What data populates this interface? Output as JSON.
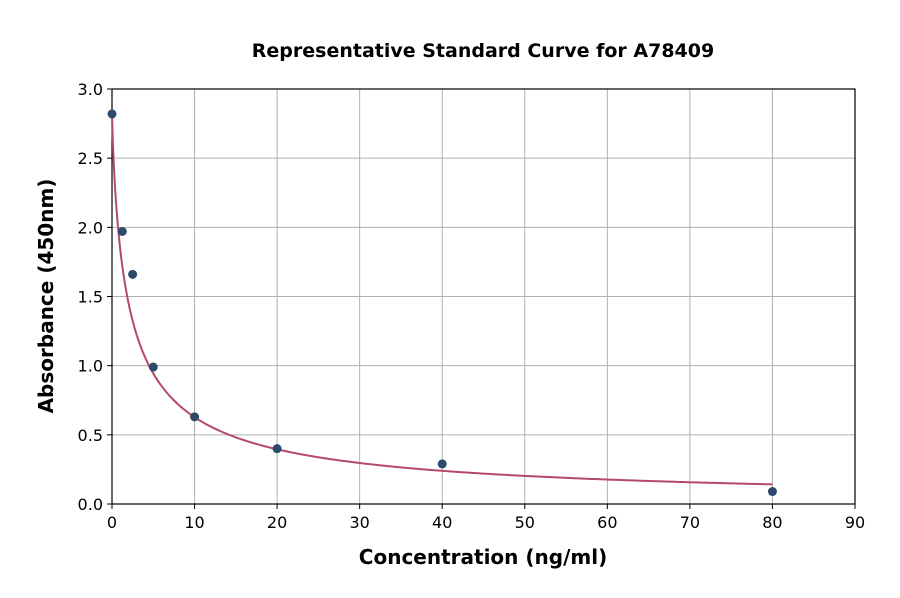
{
  "chart_data": {
    "type": "scatter",
    "title": "Representative Standard Curve for A78409",
    "xlabel": "Concentration (ng/ml)",
    "ylabel": "Absorbance (450nm)",
    "xlim": [
      0,
      90
    ],
    "ylim": [
      0,
      3.0
    ],
    "xticks": [
      "0",
      "10",
      "20",
      "30",
      "40",
      "50",
      "60",
      "70",
      "80",
      "90"
    ],
    "yticks": [
      "0.0",
      "0.5",
      "1.0",
      "1.5",
      "2.0",
      "2.5",
      "3.0"
    ],
    "grid": true,
    "points": {
      "x": [
        0,
        1.25,
        2.5,
        5,
        10,
        20,
        40,
        80
      ],
      "y": [
        2.82,
        1.97,
        1.66,
        0.99,
        0.63,
        0.4,
        0.29,
        0.09
      ]
    },
    "fit_curve": {
      "model": "4PL",
      "a": 2.85,
      "b": 0.81,
      "c": 2.1,
      "d": 0,
      "x_range": [
        0,
        80
      ]
    },
    "colors": {
      "points": "#2e4a6b",
      "curve": "#b5496b",
      "grid": "#b0b0b0"
    }
  }
}
